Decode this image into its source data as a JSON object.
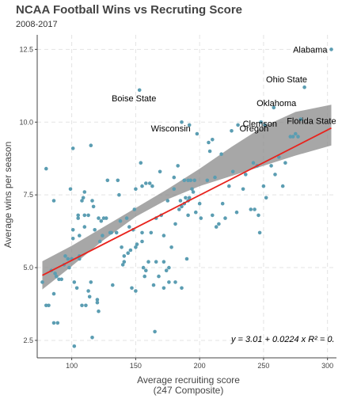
{
  "chart_data": {
    "type": "scatter",
    "title": "NCAA Football Wins vs Recruting Score",
    "subtitle": "2008-2017",
    "xlabel": [
      "Average recruiting score",
      "(247 Composite)"
    ],
    "ylabel": "Average wins per season",
    "xlim": [
      73,
      307
    ],
    "ylim": [
      1.9,
      13.0
    ],
    "x_ticks": [
      100,
      150,
      200,
      250,
      300
    ],
    "y_ticks": [
      2.5,
      5.0,
      7.5,
      10.0,
      12.5
    ],
    "y_tick_labels": [
      "2.5",
      "5.0",
      "7.5",
      "10.0",
      "12.5"
    ],
    "grid": true,
    "point_color": "#5b9db2",
    "line_color": "#e8231d",
    "ribbon_color": "#8a8a8a",
    "fit": {
      "intercept": 3.01,
      "slope": 0.0224,
      "x_range": [
        77,
        303
      ],
      "ribbon": [
        [
          77,
          4.25,
          5.22
        ],
        [
          100,
          5.05,
          5.75
        ],
        [
          125,
          5.95,
          6.4
        ],
        [
          150,
          6.75,
          7.05
        ],
        [
          175,
          7.35,
          7.7
        ],
        [
          200,
          7.8,
          8.4
        ],
        [
          225,
          8.15,
          9.15
        ],
        [
          250,
          8.5,
          9.85
        ],
        [
          275,
          8.85,
          10.35
        ],
        [
          303,
          9.2,
          10.6
        ]
      ],
      "equation": "y = 3.01 + 0.0224 x   R² = 0."
    },
    "labeled_points": [
      {
        "name": "Alabama",
        "x": 303,
        "y": 12.5
      },
      {
        "name": "Ohio State",
        "x": 281,
        "y": 11.2
      },
      {
        "name": "Boise State",
        "x": 153,
        "y": 11.1
      },
      {
        "name": "Oklahoma",
        "x": 257,
        "y": 10.5
      },
      {
        "name": "Clemson",
        "x": 230,
        "y": 9.95
      },
      {
        "name": "Florida State",
        "x": 280,
        "y": 10.1
      },
      {
        "name": "Wisconsin",
        "x": 193,
        "y": 9.85
      },
      {
        "name": "Oregon",
        "x": 238,
        "y": 10.3
      }
    ],
    "points": [
      [
        77,
        4.5
      ],
      [
        80,
        8.4
      ],
      [
        80,
        3.7
      ],
      [
        82,
        3.7
      ],
      [
        84,
        4.9
      ],
      [
        86,
        4.1
      ],
      [
        86,
        7.3
      ],
      [
        86,
        3.1
      ],
      [
        87,
        4.8
      ],
      [
        88,
        4.7
      ],
      [
        89,
        3.1
      ],
      [
        90,
        4.6
      ],
      [
        92,
        4.6
      ],
      [
        94,
        5.1
      ],
      [
        95,
        5.4
      ],
      [
        97,
        5.3
      ],
      [
        98,
        5.0
      ],
      [
        99,
        7.7
      ],
      [
        100,
        5.3
      ],
      [
        101,
        9.1
      ],
      [
        101,
        6.0
      ],
      [
        101,
        6.3
      ],
      [
        102,
        4.5
      ],
      [
        102,
        2.3
      ],
      [
        104,
        4.3
      ],
      [
        105,
        6.7
      ],
      [
        105,
        6.8
      ],
      [
        106,
        5.4
      ],
      [
        106,
        6.1
      ],
      [
        106,
        5.3
      ],
      [
        108,
        3.7
      ],
      [
        108,
        7.3
      ],
      [
        109,
        7.4
      ],
      [
        110,
        7.6
      ],
      [
        110,
        6.8
      ],
      [
        110,
        6.4
      ],
      [
        111,
        3.7
      ],
      [
        113,
        6.8
      ],
      [
        113,
        4.2
      ],
      [
        114,
        4.0
      ],
      [
        115,
        9.2
      ],
      [
        115,
        4.5
      ],
      [
        116,
        2.6
      ],
      [
        116,
        7.3
      ],
      [
        117,
        7.1
      ],
      [
        118,
        6.3
      ],
      [
        120,
        3.9
      ],
      [
        120,
        3.8
      ],
      [
        121,
        3.5
      ],
      [
        121,
        6.7
      ],
      [
        122,
        5.9
      ],
      [
        123,
        6.6
      ],
      [
        124,
        6.1
      ],
      [
        125,
        6.7
      ],
      [
        127,
        6.7
      ],
      [
        128,
        8.0
      ],
      [
        130,
        6.2
      ],
      [
        131,
        6.2
      ],
      [
        132,
        4.4
      ],
      [
        135,
        6.2
      ],
      [
        136,
        8.0
      ],
      [
        137,
        7.5
      ],
      [
        138,
        6.6
      ],
      [
        139,
        5.7
      ],
      [
        140,
        5.1
      ],
      [
        141,
        5.2
      ],
      [
        141,
        5.4
      ],
      [
        143,
        6.7
      ],
      [
        144,
        5.5
      ],
      [
        145,
        6.4
      ],
      [
        146,
        5.6
      ],
      [
        147,
        4.3
      ],
      [
        148,
        6.3
      ],
      [
        149,
        7.0
      ],
      [
        150,
        7.7
      ],
      [
        150,
        4.2
      ],
      [
        150,
        5.7
      ],
      [
        151,
        5.8
      ],
      [
        153,
        11.1
      ],
      [
        154,
        8.6
      ],
      [
        155,
        7.8
      ],
      [
        155,
        6.2
      ],
      [
        155,
        5.9
      ],
      [
        156,
        5.0
      ],
      [
        157,
        4.7
      ],
      [
        158,
        4.9
      ],
      [
        158,
        7.9
      ],
      [
        160,
        5.2
      ],
      [
        161,
        7.9
      ],
      [
        162,
        6.2
      ],
      [
        163,
        7.8
      ],
      [
        164,
        4.4
      ],
      [
        165,
        2.8
      ],
      [
        166,
        6.7
      ],
      [
        166,
        5.2
      ],
      [
        168,
        4.7
      ],
      [
        169,
        8.3
      ],
      [
        170,
        6.8
      ],
      [
        172,
        6.1
      ],
      [
        172,
        5.2
      ],
      [
        172,
        4.3
      ],
      [
        174,
        4.9
      ],
      [
        175,
        7.3
      ],
      [
        176,
        5.0
      ],
      [
        176,
        4.5
      ],
      [
        178,
        5.7
      ],
      [
        180,
        7.7
      ],
      [
        180,
        8.1
      ],
      [
        181,
        6.5
      ],
      [
        181,
        4.5
      ],
      [
        183,
        8.5
      ],
      [
        184,
        7.0
      ],
      [
        185,
        7.3
      ],
      [
        186,
        7.1
      ],
      [
        186,
        10.0
      ],
      [
        186,
        4.3
      ],
      [
        188,
        7.2
      ],
      [
        188,
        8.0
      ],
      [
        189,
        7.4
      ],
      [
        190,
        5.3
      ],
      [
        191,
        7.3
      ],
      [
        191,
        8.0
      ],
      [
        191,
        6.8
      ],
      [
        192,
        9.9
      ],
      [
        192,
        7.4
      ],
      [
        193,
        8.0
      ],
      [
        194,
        7.7
      ],
      [
        195,
        7.6
      ],
      [
        196,
        8.0
      ],
      [
        197,
        6.9
      ],
      [
        198,
        9.6
      ],
      [
        200,
        7.2
      ],
      [
        201,
        6.7
      ],
      [
        206,
        8.0
      ],
      [
        207,
        9.3
      ],
      [
        208,
        9.0
      ],
      [
        210,
        6.8
      ],
      [
        210,
        9.4
      ],
      [
        212,
        8.1
      ],
      [
        213,
        6.4
      ],
      [
        215,
        6.5
      ],
      [
        217,
        8.9
      ],
      [
        218,
        7.2
      ],
      [
        220,
        6.7
      ],
      [
        223,
        7.8
      ],
      [
        225,
        9.7
      ],
      [
        226,
        8.3
      ],
      [
        229,
        6.9
      ],
      [
        230,
        9.9
      ],
      [
        234,
        7.7
      ],
      [
        236,
        8.2
      ],
      [
        240,
        7.0
      ],
      [
        242,
        8.6
      ],
      [
        243,
        7.0
      ],
      [
        245,
        8.5
      ],
      [
        246,
        6.8
      ],
      [
        247,
        6.2
      ],
      [
        248,
        10.0
      ],
      [
        250,
        7.8
      ],
      [
        251,
        9.9
      ],
      [
        252,
        7.4
      ],
      [
        256,
        8.5
      ],
      [
        258,
        10.5
      ],
      [
        259,
        8.2
      ],
      [
        262,
        8.8
      ],
      [
        265,
        7.8
      ],
      [
        267,
        8.6
      ],
      [
        271,
        9.5
      ],
      [
        273,
        9.5
      ],
      [
        275,
        9.6
      ],
      [
        277,
        9.5
      ],
      [
        279,
        10.1
      ],
      [
        282,
        11.2
      ],
      [
        303,
        12.5
      ]
    ]
  }
}
